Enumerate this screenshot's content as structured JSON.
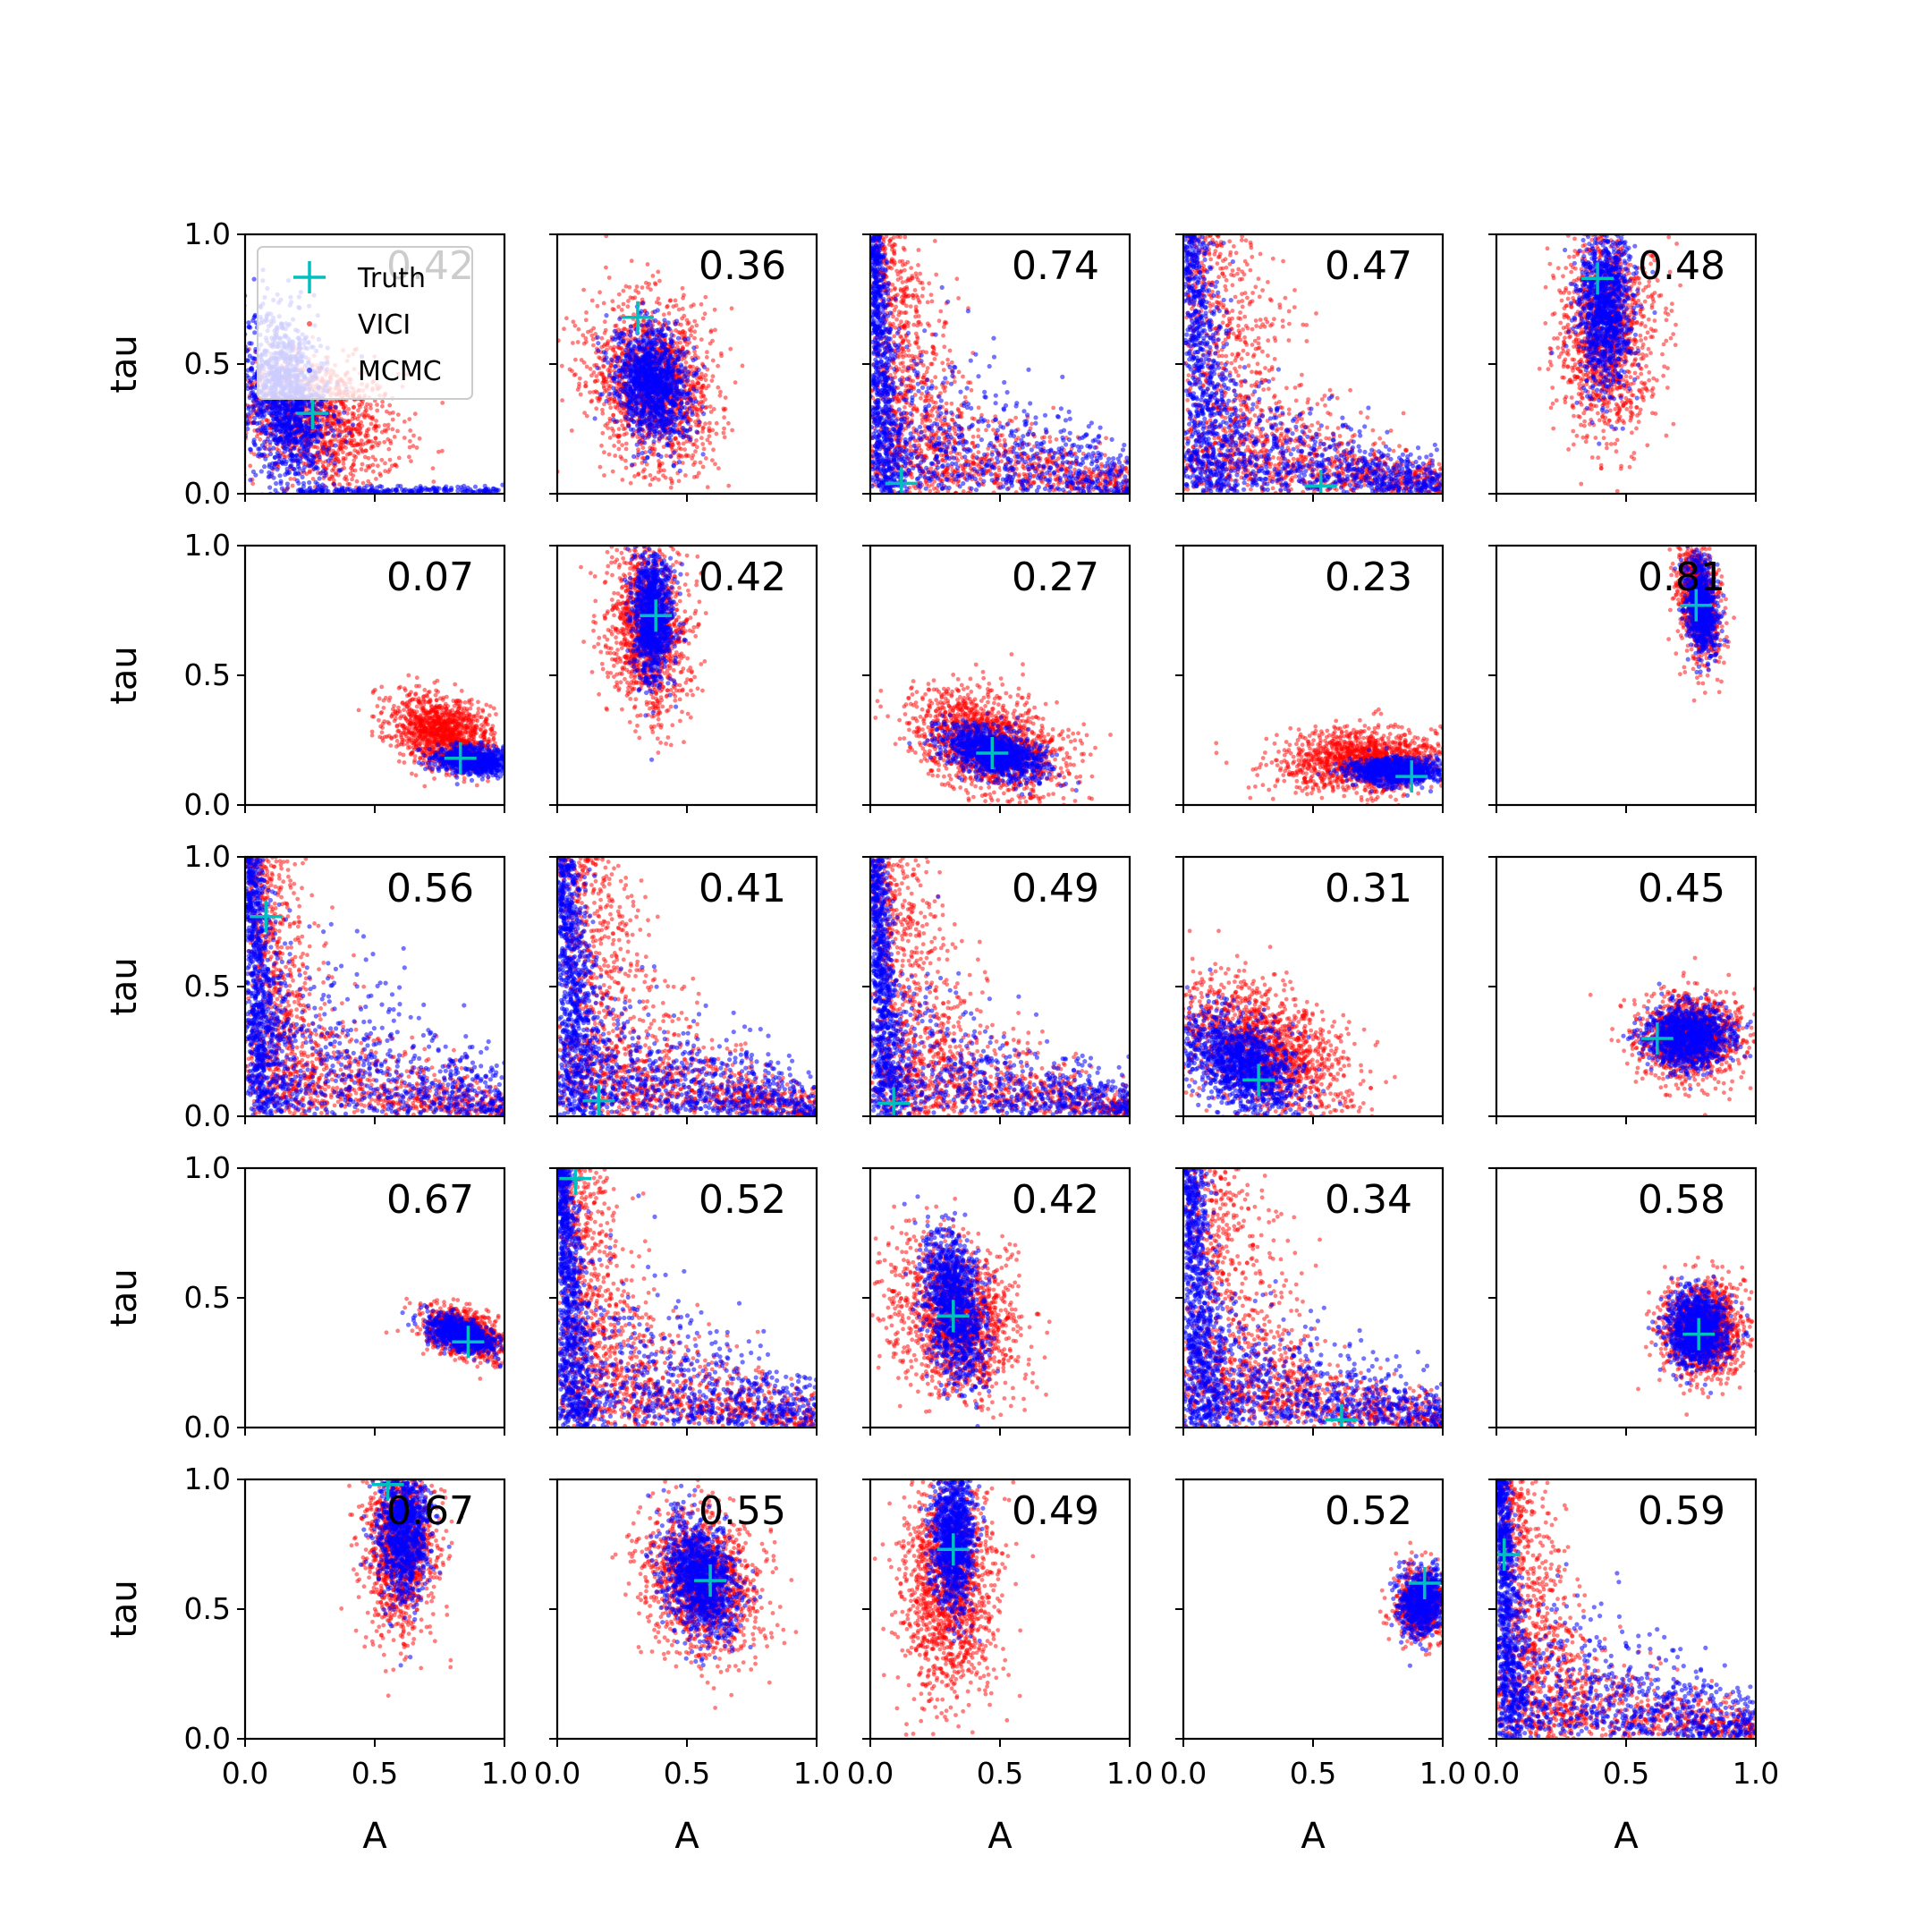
{
  "chart_data": {
    "type": "scatter",
    "grid": false,
    "legend": {
      "placement": "upper-left",
      "in_panel": 0,
      "entries": [
        {
          "label": "Truth",
          "marker": "plus",
          "color": "#00bfbf"
        },
        {
          "label": "VICI",
          "marker": "dot",
          "color": "#ff0000"
        },
        {
          "label": "MCMC",
          "marker": "dot",
          "color": "#0000ff"
        }
      ]
    },
    "colors": {
      "vici": "#ff0000",
      "mcmc": "#0000ff",
      "truth": "#00bfbf"
    },
    "grid_layout": {
      "rows": 5,
      "cols": 5
    },
    "xlabel": "A",
    "ylabel": "tau",
    "xlim": [
      0.0,
      1.0
    ],
    "ylim": [
      0.0,
      1.0
    ],
    "xticks": [
      "0.0",
      "0.5",
      "1.0"
    ],
    "yticks": [
      "0.0",
      "0.5",
      "1.0"
    ],
    "panels": [
      {
        "score": "0.42",
        "truth": [
          0.26,
          0.31
        ],
        "vici": {
          "kind": "blob",
          "cx": 0.28,
          "cy": 0.28,
          "sx": 0.16,
          "sy": 0.13,
          "rho": -0.25,
          "n": 1200
        },
        "mcmc": {
          "kind": "blob",
          "cx": 0.16,
          "cy": 0.36,
          "sx": 0.08,
          "sy": 0.17,
          "rho": -0.3,
          "n": 1300,
          "tail": true
        }
      },
      {
        "score": "0.36",
        "truth": [
          0.31,
          0.68
        ],
        "vici": {
          "kind": "blob",
          "cx": 0.37,
          "cy": 0.42,
          "sx": 0.12,
          "sy": 0.16,
          "rho": -0.15,
          "n": 1500
        },
        "mcmc": {
          "kind": "blob",
          "cx": 0.37,
          "cy": 0.42,
          "sx": 0.07,
          "sy": 0.11,
          "rho": -0.2,
          "n": 1200
        }
      },
      {
        "score": "0.74",
        "truth": [
          0.12,
          0.04
        ],
        "vici": {
          "kind": "corner",
          "a0": 0.18,
          "t0": 0.45,
          "s": 0.16,
          "n": 1400
        },
        "mcmc": {
          "kind": "corner",
          "a0": 0.05,
          "t0": 0.7,
          "s": 0.05,
          "n": 1400
        }
      },
      {
        "score": "0.47",
        "truth": [
          0.53,
          0.03
        ],
        "vici": {
          "kind": "corner",
          "a0": 0.3,
          "t0": 0.4,
          "s": 0.18,
          "n": 1400
        },
        "mcmc": {
          "kind": "corner",
          "a0": 0.1,
          "t0": 0.5,
          "s": 0.08,
          "n": 1400
        }
      },
      {
        "score": "0.48",
        "truth": [
          0.39,
          0.83
        ],
        "vici": {
          "kind": "blob",
          "cx": 0.42,
          "cy": 0.62,
          "sx": 0.09,
          "sy": 0.2,
          "rho": 0.0,
          "n": 1300
        },
        "mcmc": {
          "kind": "blob",
          "cx": 0.42,
          "cy": 0.72,
          "sx": 0.05,
          "sy": 0.16,
          "rho": 0.0,
          "n": 1100
        }
      },
      {
        "score": "0.07",
        "truth": [
          0.83,
          0.18
        ],
        "vici": {
          "kind": "blob",
          "cx": 0.76,
          "cy": 0.28,
          "sx": 0.1,
          "sy": 0.07,
          "rho": -0.3,
          "n": 1300
        },
        "mcmc": {
          "kind": "blob",
          "cx": 0.88,
          "cy": 0.17,
          "sx": 0.07,
          "sy": 0.025,
          "rho": -0.2,
          "n": 900
        }
      },
      {
        "score": "0.42",
        "truth": [
          0.38,
          0.73
        ],
        "vici": {
          "kind": "blob",
          "cx": 0.35,
          "cy": 0.68,
          "sx": 0.08,
          "sy": 0.16,
          "rho": -0.1,
          "n": 1300
        },
        "mcmc": {
          "kind": "blob",
          "cx": 0.37,
          "cy": 0.72,
          "sx": 0.04,
          "sy": 0.12,
          "rho": -0.1,
          "n": 1000
        }
      },
      {
        "score": "0.27",
        "truth": [
          0.47,
          0.2
        ],
        "vici": {
          "kind": "blob",
          "cx": 0.45,
          "cy": 0.24,
          "sx": 0.14,
          "sy": 0.1,
          "rho": -0.35,
          "n": 1500
        },
        "mcmc": {
          "kind": "blob",
          "cx": 0.48,
          "cy": 0.2,
          "sx": 0.1,
          "sy": 0.05,
          "rho": -0.5,
          "n": 1100
        }
      },
      {
        "score": "0.23",
        "truth": [
          0.88,
          0.11
        ],
        "vici": {
          "kind": "blob",
          "cx": 0.7,
          "cy": 0.17,
          "sx": 0.16,
          "sy": 0.06,
          "rho": 0.0,
          "n": 1400
        },
        "mcmc": {
          "kind": "blob",
          "cx": 0.82,
          "cy": 0.13,
          "sx": 0.09,
          "sy": 0.025,
          "rho": 0.0,
          "n": 900
        }
      },
      {
        "score": "0.81",
        "truth": [
          0.77,
          0.77
        ],
        "vici": {
          "kind": "blob",
          "cx": 0.78,
          "cy": 0.78,
          "sx": 0.04,
          "sy": 0.11,
          "rho": -0.3,
          "n": 900
        },
        "mcmc": {
          "kind": "blob",
          "cx": 0.79,
          "cy": 0.77,
          "sx": 0.03,
          "sy": 0.09,
          "rho": -0.3,
          "n": 800
        }
      },
      {
        "score": "0.56",
        "truth": [
          0.08,
          0.77
        ],
        "vici": {
          "kind": "corner",
          "a0": 0.18,
          "t0": 0.5,
          "s": 0.13,
          "n": 1400
        },
        "mcmc": {
          "kind": "corner",
          "a0": 0.07,
          "t0": 0.8,
          "s": 0.05,
          "n": 1500
        }
      },
      {
        "score": "0.41",
        "truth": [
          0.16,
          0.06
        ],
        "vici": {
          "kind": "corner",
          "a0": 0.25,
          "t0": 0.45,
          "s": 0.15,
          "n": 1400
        },
        "mcmc": {
          "kind": "corner",
          "a0": 0.08,
          "t0": 0.6,
          "s": 0.07,
          "n": 1500
        }
      },
      {
        "score": "0.49",
        "truth": [
          0.09,
          0.05
        ],
        "vici": {
          "kind": "corner",
          "a0": 0.22,
          "t0": 0.45,
          "s": 0.15,
          "n": 1400
        },
        "mcmc": {
          "kind": "corner",
          "a0": 0.06,
          "t0": 0.6,
          "s": 0.05,
          "n": 1400
        }
      },
      {
        "score": "0.31",
        "truth": [
          0.29,
          0.14
        ],
        "vici": {
          "kind": "blob",
          "cx": 0.3,
          "cy": 0.26,
          "sx": 0.17,
          "sy": 0.13,
          "rho": -0.45,
          "n": 1500
        },
        "mcmc": {
          "kind": "blob",
          "cx": 0.22,
          "cy": 0.2,
          "sx": 0.11,
          "sy": 0.1,
          "rho": -0.4,
          "n": 1200
        }
      },
      {
        "score": "0.45",
        "truth": [
          0.62,
          0.3
        ],
        "vici": {
          "kind": "blob",
          "cx": 0.75,
          "cy": 0.31,
          "sx": 0.1,
          "sy": 0.08,
          "rho": 0.0,
          "n": 1300
        },
        "mcmc": {
          "kind": "blob",
          "cx": 0.74,
          "cy": 0.31,
          "sx": 0.08,
          "sy": 0.06,
          "rho": 0.0,
          "n": 1100
        }
      },
      {
        "score": "0.67",
        "truth": [
          0.86,
          0.33
        ],
        "vici": {
          "kind": "blob",
          "cx": 0.85,
          "cy": 0.36,
          "sx": 0.08,
          "sy": 0.05,
          "rho": -0.4,
          "n": 900
        },
        "mcmc": {
          "kind": "blob",
          "cx": 0.83,
          "cy": 0.36,
          "sx": 0.06,
          "sy": 0.035,
          "rho": -0.5,
          "n": 800
        }
      },
      {
        "score": "0.52",
        "truth": [
          0.07,
          0.96
        ],
        "vici": {
          "kind": "corner",
          "a0": 0.2,
          "t0": 0.5,
          "s": 0.15,
          "n": 1400
        },
        "mcmc": {
          "kind": "corner",
          "a0": 0.06,
          "t0": 0.7,
          "s": 0.06,
          "n": 1500
        }
      },
      {
        "score": "0.42",
        "truth": [
          0.32,
          0.43
        ],
        "vici": {
          "kind": "blob",
          "cx": 0.33,
          "cy": 0.42,
          "sx": 0.12,
          "sy": 0.15,
          "rho": -0.2,
          "n": 1500
        },
        "mcmc": {
          "kind": "blob",
          "cx": 0.32,
          "cy": 0.48,
          "sx": 0.06,
          "sy": 0.14,
          "rho": -0.35,
          "n": 1100
        }
      },
      {
        "score": "0.34",
        "truth": [
          0.61,
          0.03
        ],
        "vici": {
          "kind": "corner",
          "a0": 0.28,
          "t0": 0.4,
          "s": 0.16,
          "n": 1400
        },
        "mcmc": {
          "kind": "corner",
          "a0": 0.08,
          "t0": 0.6,
          "s": 0.07,
          "n": 1500
        }
      },
      {
        "score": "0.58",
        "truth": [
          0.78,
          0.36
        ],
        "vici": {
          "kind": "blob",
          "cx": 0.8,
          "cy": 0.38,
          "sx": 0.08,
          "sy": 0.09,
          "rho": 0.0,
          "n": 1300
        },
        "mcmc": {
          "kind": "blob",
          "cx": 0.78,
          "cy": 0.38,
          "sx": 0.06,
          "sy": 0.07,
          "rho": 0.0,
          "n": 1100
        }
      },
      {
        "score": "0.67",
        "truth": [
          0.55,
          0.98
        ],
        "vici": {
          "kind": "blob",
          "cx": 0.6,
          "cy": 0.75,
          "sx": 0.07,
          "sy": 0.16,
          "rho": 0.0,
          "n": 1200
        },
        "mcmc": {
          "kind": "blob",
          "cx": 0.61,
          "cy": 0.8,
          "sx": 0.05,
          "sy": 0.13,
          "rho": 0.0,
          "n": 1000
        }
      },
      {
        "score": "0.55",
        "truth": [
          0.59,
          0.61
        ],
        "vici": {
          "kind": "blob",
          "cx": 0.56,
          "cy": 0.6,
          "sx": 0.11,
          "sy": 0.14,
          "rho": -0.2,
          "n": 1400
        },
        "mcmc": {
          "kind": "blob",
          "cx": 0.55,
          "cy": 0.62,
          "sx": 0.07,
          "sy": 0.11,
          "rho": -0.3,
          "n": 1100
        }
      },
      {
        "score": "0.49",
        "truth": [
          0.32,
          0.73
        ],
        "vici": {
          "kind": "blob",
          "cx": 0.3,
          "cy": 0.58,
          "sx": 0.09,
          "sy": 0.22,
          "rho": 0.0,
          "n": 1500
        },
        "mcmc": {
          "kind": "blob",
          "cx": 0.32,
          "cy": 0.78,
          "sx": 0.04,
          "sy": 0.14,
          "rho": 0.0,
          "n": 1100
        }
      },
      {
        "score": "0.52",
        "truth": [
          0.93,
          0.6
        ],
        "vici": {
          "kind": "blob",
          "cx": 0.92,
          "cy": 0.52,
          "sx": 0.05,
          "sy": 0.07,
          "rho": 0.0,
          "n": 700
        },
        "mcmc": {
          "kind": "blob",
          "cx": 0.92,
          "cy": 0.53,
          "sx": 0.045,
          "sy": 0.065,
          "rho": 0.0,
          "n": 700
        }
      },
      {
        "score": "0.59",
        "truth": [
          0.03,
          0.71
        ],
        "vici": {
          "kind": "corner",
          "a0": 0.17,
          "t0": 0.45,
          "s": 0.13,
          "n": 1400
        },
        "mcmc": {
          "kind": "corner",
          "a0": 0.05,
          "t0": 0.7,
          "s": 0.05,
          "n": 1500
        }
      }
    ]
  }
}
